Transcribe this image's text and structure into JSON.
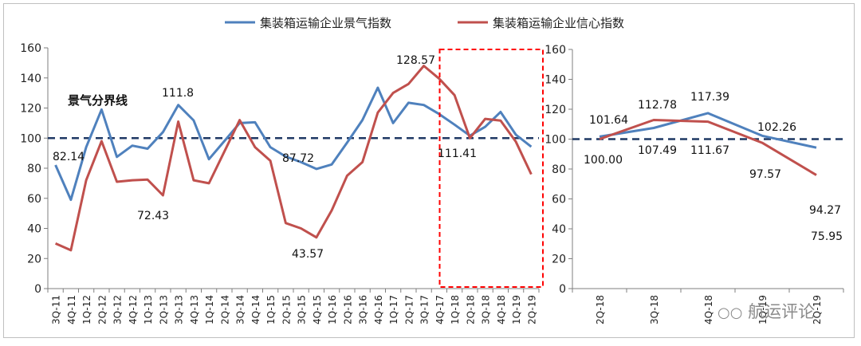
{
  "legend": {
    "series1": "集装箱运输企业景气指数",
    "series2": "集装箱运输企业信心指数"
  },
  "colors": {
    "series1": "#4f81bd",
    "series2": "#c0504d",
    "threshold": "#1f3864",
    "highlight": "#ff0000"
  },
  "watermark": {
    "text": "航运评论",
    "icon": "wechat-icon"
  },
  "chart_data": [
    {
      "type": "line",
      "categories": [
        "3Q-11",
        "4Q-11",
        "1Q-12",
        "2Q-12",
        "3Q-12",
        "4Q-12",
        "1Q-13",
        "2Q-13",
        "3Q-13",
        "4Q-13",
        "1Q-14",
        "2Q-14",
        "3Q-14",
        "4Q-14",
        "1Q-15",
        "2Q-15",
        "3Q-15",
        "4Q-15",
        "1Q-16",
        "2Q-16",
        "3Q-16",
        "4Q-16",
        "1Q-17",
        "2Q-17",
        "3Q-17",
        "4Q-17",
        "1Q-18",
        "2Q-18",
        "3Q-18",
        "4Q-18",
        "1Q-19",
        "2Q-19"
      ],
      "series": [
        {
          "name": "集装箱运输企业景气指数",
          "values": [
            82.14,
            59,
            94,
            119,
            87.5,
            95,
            93,
            104,
            122,
            111.8,
            86,
            98,
            110,
            110.5,
            94,
            87.72,
            84,
            79.5,
            82.5,
            97,
            112,
            133.5,
            110,
            123.5,
            122,
            116,
            109,
            101.64,
            107.49,
            117.39,
            102.26,
            94.27
          ]
        },
        {
          "name": "集装箱运输企业信心指数",
          "values": [
            30,
            25.5,
            72,
            98,
            71,
            72,
            72.43,
            62,
            111,
            72,
            70,
            91,
            112,
            94,
            85,
            43.57,
            40,
            34,
            52,
            75,
            84,
            117,
            130,
            136,
            148,
            139.5,
            128.57,
            100.0,
            112.78,
            111.67,
            97.57,
            75.95
          ]
        }
      ],
      "threshold": {
        "value": 100,
        "label": "景气分界线"
      },
      "annotations": [
        "82.14",
        "111.8",
        "72.43",
        "87.72",
        "43.57",
        "128.57",
        "111.41"
      ],
      "ylim": [
        0,
        160
      ],
      "yticks": [
        0,
        20,
        40,
        60,
        80,
        100,
        120,
        140,
        160
      ],
      "highlight_range": [
        "1Q-18",
        "2Q-19"
      ],
      "grid": false,
      "legend_position": "top"
    },
    {
      "type": "line",
      "categories": [
        "2Q-18",
        "3Q-18",
        "4Q-18",
        "1Q-19",
        "2Q-19"
      ],
      "series": [
        {
          "name": "集装箱运输企业景气指数",
          "values": [
            101.64,
            107.49,
            117.39,
            102.26,
            94.27
          ]
        },
        {
          "name": "集装箱运输企业信心指数",
          "values": [
            100.0,
            112.78,
            111.67,
            97.57,
            75.95
          ]
        }
      ],
      "annotations": [
        "101.64",
        "112.78",
        "117.39",
        "102.26",
        "94.27",
        "100.00",
        "107.49",
        "111.67",
        "97.57",
        "75.95"
      ],
      "threshold": {
        "value": 100
      },
      "ylim": [
        0,
        160
      ],
      "yticks": [
        0,
        20,
        40,
        60,
        80,
        100,
        120,
        140,
        160
      ],
      "grid": false
    }
  ]
}
